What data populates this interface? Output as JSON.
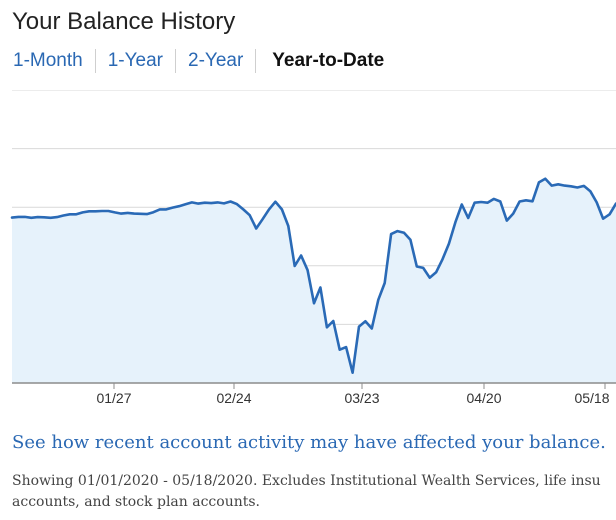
{
  "title": "Your Balance History",
  "tabs": [
    {
      "label": "1-Month",
      "active": false
    },
    {
      "label": "1-Year",
      "active": false
    },
    {
      "label": "2-Year",
      "active": false
    },
    {
      "label": "Year-to-Date",
      "active": true
    }
  ],
  "colors": {
    "accent": "#2a68b3",
    "line": "#2a6ab6",
    "area": "#e6f2fb",
    "gridline": "#d9d9d9",
    "axis": "#8c8c8c"
  },
  "chart_data": {
    "type": "area",
    "title": "",
    "xlabel": "",
    "ylabel": "",
    "grid": true,
    "x_tick_labels": [
      "01/27",
      "02/24",
      "03/23",
      "04/20",
      "05/18"
    ],
    "y_relative_range": [
      0,
      1
    ],
    "values": [
      0.71,
      0.713,
      0.713,
      0.709,
      0.712,
      0.711,
      0.709,
      0.712,
      0.719,
      0.724,
      0.724,
      0.732,
      0.737,
      0.737,
      0.738,
      0.738,
      0.732,
      0.727,
      0.73,
      0.727,
      0.726,
      0.725,
      0.733,
      0.745,
      0.745,
      0.753,
      0.759,
      0.767,
      0.775,
      0.77,
      0.774,
      0.772,
      0.775,
      0.771,
      0.779,
      0.768,
      0.745,
      0.72,
      0.663,
      0.703,
      0.745,
      0.778,
      0.745,
      0.674,
      0.502,
      0.547,
      0.484,
      0.342,
      0.41,
      0.239,
      0.266,
      0.143,
      0.154,
      0.044,
      0.242,
      0.265,
      0.234,
      0.357,
      0.429,
      0.639,
      0.652,
      0.645,
      0.615,
      0.5,
      0.494,
      0.452,
      0.475,
      0.531,
      0.598,
      0.69,
      0.766,
      0.708,
      0.774,
      0.777,
      0.774,
      0.79,
      0.779,
      0.697,
      0.727,
      0.779,
      0.784,
      0.78,
      0.861,
      0.877,
      0.847,
      0.853,
      0.847,
      0.844,
      0.839,
      0.846,
      0.823,
      0.775,
      0.705,
      0.724,
      0.77
    ]
  },
  "info_link": "See how recent account activity may have affected your balance.",
  "note": {
    "line1": "Showing 01/01/2020 - 05/18/2020. Excludes Institutional Wealth Services, life insu",
    "line2": "accounts, and stock plan accounts."
  }
}
